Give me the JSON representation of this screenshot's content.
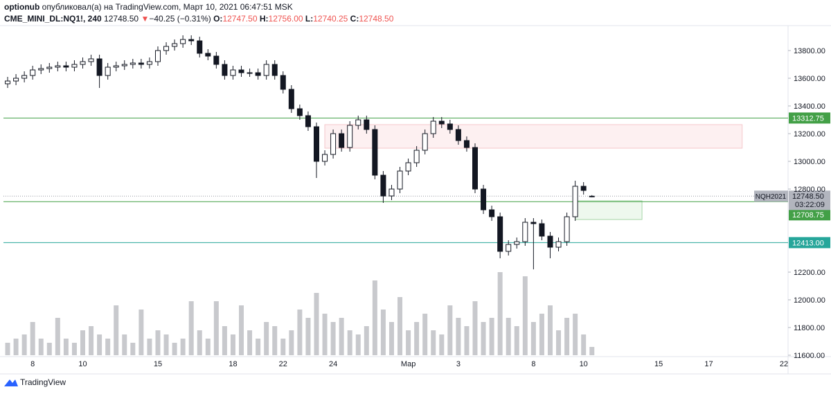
{
  "header": {
    "author": "optionub",
    "published": "опубликовал(а) на TradingView.com, Март 10, 2021 06:47:51 MSK",
    "symbol": "CME_MINI_DL:NQ1!, 240",
    "last": "12748.50",
    "arrow": "▼",
    "change": "−40.25 (−0.31%)",
    "o_label": "O:",
    "o": "12747.50",
    "h_label": "H:",
    "h": "12756.00",
    "l_label": "L:",
    "l": "12740.25",
    "c_label": "C:",
    "c": "12748.50"
  },
  "footer": {
    "brand": "TradingView"
  },
  "chart_data": {
    "type": "candlestick",
    "categories": [
      null,
      null,
      null,
      "8",
      null,
      null,
      null,
      null,
      null,
      "10",
      null,
      null,
      null,
      null,
      null,
      null,
      null,
      null,
      "15",
      null,
      null,
      null,
      null,
      null,
      null,
      null,
      null,
      "18",
      null,
      null,
      null,
      null,
      null,
      "22",
      null,
      null,
      null,
      null,
      null,
      "24",
      null,
      null,
      null,
      null,
      null,
      null,
      null,
      null,
      "Мар",
      null,
      null,
      null,
      null,
      null,
      "3",
      null,
      null,
      null,
      null,
      null,
      null,
      null,
      null,
      "8",
      null,
      null,
      null,
      null,
      null,
      "10",
      null,
      null,
      null,
      null,
      null,
      null,
      null,
      null,
      "15",
      null,
      null,
      null,
      null,
      null,
      "17",
      null,
      null,
      null,
      null,
      null,
      null,
      null,
      null,
      "22"
    ],
    "open": [
      13560,
      13580,
      13600,
      13620,
      13660,
      13670,
      13680,
      13690,
      13680,
      13700,
      13720,
      13740,
      13620,
      13680,
      13690,
      13700,
      13710,
      13700,
      13720,
      13800,
      13830,
      13850,
      13880,
      13870,
      13780,
      13760,
      13700,
      13620,
      13660,
      13640,
      13640,
      13620,
      13700,
      13620,
      13520,
      13380,
      13330,
      13250,
      13000,
      13050,
      13200,
      13100,
      13260,
      13300,
      13230,
      12900,
      12750,
      12800,
      12930,
      12990,
      13080,
      13200,
      13290,
      13270,
      13230,
      13150,
      13100,
      12800,
      12650,
      12600,
      12350,
      12400,
      12420,
      12560,
      12550,
      12460,
      12380,
      12420,
      12600,
      12820,
      12747.5,
      null,
      null,
      null,
      null,
      null,
      null,
      null,
      null,
      null,
      null,
      null,
      null,
      null,
      null,
      null,
      null,
      null,
      null,
      null,
      null,
      null,
      null,
      null
    ],
    "high": [
      13610,
      13630,
      13650,
      13690,
      13700,
      13710,
      13720,
      13720,
      13730,
      13750,
      13770,
      13770,
      13710,
      13720,
      13730,
      13740,
      13740,
      13750,
      13830,
      13860,
      13880,
      13910,
      13910,
      13900,
      13810,
      13790,
      13730,
      13690,
      13690,
      13670,
      13670,
      13730,
      13730,
      13650,
      13550,
      13410,
      13360,
      13280,
      13080,
      13230,
      13230,
      13290,
      13330,
      13330,
      13260,
      12930,
      12830,
      12960,
      13020,
      13110,
      13230,
      13320,
      13320,
      13300,
      13260,
      13180,
      13130,
      12830,
      12680,
      12630,
      12430,
      12450,
      12590,
      12590,
      12580,
      12490,
      12450,
      12630,
      12860,
      12850,
      12756,
      null,
      null,
      null,
      null,
      null,
      null,
      null,
      null,
      null,
      null,
      null,
      null,
      null,
      null,
      null,
      null,
      null,
      null,
      null,
      null,
      null,
      null,
      null
    ],
    "low": [
      13530,
      13550,
      13570,
      13590,
      13630,
      13640,
      13650,
      13650,
      13650,
      13670,
      13690,
      13530,
      13590,
      13650,
      13660,
      13670,
      13670,
      13670,
      13690,
      13770,
      13800,
      13820,
      13840,
      13750,
      13730,
      13670,
      13590,
      13590,
      13610,
      13610,
      13590,
      13590,
      13590,
      13490,
      13350,
      13300,
      13220,
      12880,
      12970,
      13020,
      13070,
      13070,
      13230,
      13200,
      12870,
      12700,
      12720,
      12770,
      12900,
      12960,
      13050,
      13170,
      13240,
      13200,
      13120,
      13070,
      12770,
      12620,
      12570,
      12300,
      12320,
      12370,
      12390,
      12220,
      12430,
      12300,
      12350,
      12390,
      12570,
      12760,
      12740.25,
      null,
      null,
      null,
      null,
      null,
      null,
      null,
      null,
      null,
      null,
      null,
      null,
      null,
      null,
      null,
      null,
      null,
      null,
      null,
      null,
      null,
      null,
      null
    ],
    "close": [
      13580,
      13600,
      13620,
      13660,
      13670,
      13680,
      13690,
      13680,
      13700,
      13720,
      13740,
      13620,
      13680,
      13690,
      13700,
      13710,
      13700,
      13720,
      13800,
      13830,
      13850,
      13880,
      13870,
      13780,
      13760,
      13700,
      13620,
      13660,
      13640,
      13640,
      13620,
      13700,
      13620,
      13520,
      13380,
      13330,
      13250,
      13000,
      13050,
      13200,
      13100,
      13260,
      13300,
      13230,
      12900,
      12750,
      12800,
      12930,
      12990,
      13080,
      13200,
      13290,
      13270,
      13230,
      13150,
      13100,
      12800,
      12650,
      12600,
      12350,
      12400,
      12420,
      12560,
      12550,
      12460,
      12380,
      12420,
      12600,
      12820,
      12790,
      12748.5,
      null,
      null,
      null,
      null,
      null,
      null,
      null,
      null,
      null,
      null,
      null,
      null,
      null,
      null,
      null,
      null,
      null,
      null,
      null,
      null,
      null,
      null,
      null
    ],
    "volume": [
      15,
      20,
      25,
      40,
      20,
      15,
      45,
      20,
      15,
      30,
      35,
      25,
      20,
      60,
      25,
      15,
      55,
      20,
      30,
      25,
      15,
      20,
      65,
      30,
      20,
      65,
      35,
      25,
      60,
      30,
      20,
      40,
      35,
      20,
      30,
      55,
      45,
      75,
      50,
      40,
      45,
      30,
      25,
      35,
      90,
      55,
      40,
      70,
      30,
      40,
      50,
      30,
      25,
      60,
      45,
      35,
      65,
      40,
      45,
      100,
      45,
      35,
      95,
      40,
      50,
      60,
      30,
      45,
      50,
      25,
      10,
      null,
      null,
      null,
      null,
      null,
      null,
      null,
      null,
      null,
      null,
      null,
      null,
      null,
      null,
      null,
      null,
      null,
      null,
      null,
      null,
      null,
      null,
      null
    ],
    "up_color": "#ffffff",
    "down_color": "#131722",
    "volume_color": "#c8c9cd",
    "ylim": [
      11590,
      13980
    ],
    "yticks": [
      {
        "value": 11600,
        "label": "11600.00"
      },
      {
        "value": 11800,
        "label": "11800.00"
      },
      {
        "value": 12000,
        "label": "12000.00"
      },
      {
        "value": 12200,
        "label": "12200.00"
      },
      {
        "value": 12800,
        "label": "12800.00"
      },
      {
        "value": 13000,
        "label": "13000.00"
      },
      {
        "value": 13200,
        "label": "13200.00"
      },
      {
        "value": 13400,
        "label": "13400.00"
      },
      {
        "value": 13600,
        "label": "13600.00"
      },
      {
        "value": 13800,
        "label": "13800.00"
      }
    ],
    "grid": false,
    "levels": [
      {
        "value": 13312.75,
        "label": "13312.75",
        "color": "#43a047"
      },
      {
        "value": 12708.75,
        "label": "12708.75",
        "color": "#43a047"
      },
      {
        "value": 12413,
        "label": "12413.00",
        "color": "#26a69a"
      }
    ],
    "zones": [
      {
        "top": 13265,
        "bottom": 13095,
        "color": "#fdf0f1",
        "border": "#f5c6ca"
      },
      {
        "top": 12715,
        "bottom": 12580,
        "color": "#eef8ee",
        "border": "#a5d6a7"
      }
    ],
    "price_tag": {
      "symbol": "NQH2021",
      "price": "12748.50",
      "countdown": "03:22:09",
      "color": "#b2b5be"
    }
  }
}
